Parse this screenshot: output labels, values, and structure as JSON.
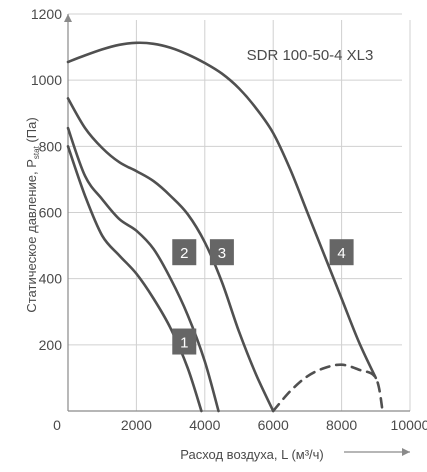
{
  "chart_data": {
    "type": "line",
    "title": "SDR 100-50-4 XL3",
    "xlabel": "Расход воздуха, L (м³/ч)",
    "ylabel": "Статическое давление, P",
    "ylabel_sub": "stat",
    "ylabel_unit": " (Па)",
    "xlim": [
      0,
      10000
    ],
    "ylim": [
      0,
      1200
    ],
    "x_ticks": [
      0,
      2000,
      4000,
      6000,
      8000,
      10000
    ],
    "y_ticks": [
      200,
      400,
      600,
      800,
      1000,
      1200
    ],
    "grid": true,
    "series": [
      {
        "name": "1",
        "values": [
          [
            0,
            800
          ],
          [
            500,
            650
          ],
          [
            1000,
            530
          ],
          [
            1500,
            470
          ],
          [
            2000,
            415
          ],
          [
            2500,
            340
          ],
          [
            3000,
            250
          ],
          [
            3500,
            130
          ],
          [
            3900,
            0
          ]
        ]
      },
      {
        "name": "2",
        "values": [
          [
            0,
            855
          ],
          [
            500,
            710
          ],
          [
            1000,
            640
          ],
          [
            1500,
            580
          ],
          [
            2000,
            545
          ],
          [
            2500,
            490
          ],
          [
            3000,
            400
          ],
          [
            3500,
            290
          ],
          [
            4000,
            150
          ],
          [
            4400,
            0
          ]
        ]
      },
      {
        "name": "3",
        "values": [
          [
            0,
            945
          ],
          [
            500,
            855
          ],
          [
            1000,
            795
          ],
          [
            1500,
            752
          ],
          [
            2000,
            725
          ],
          [
            2500,
            695
          ],
          [
            3000,
            650
          ],
          [
            3500,
            595
          ],
          [
            4000,
            510
          ],
          [
            4500,
            390
          ],
          [
            5000,
            240
          ],
          [
            5500,
            110
          ],
          [
            6000,
            0
          ]
        ]
      },
      {
        "name": "4",
        "values": [
          [
            0,
            1055
          ],
          [
            500,
            1075
          ],
          [
            1000,
            1093
          ],
          [
            1500,
            1107
          ],
          [
            2000,
            1113
          ],
          [
            2500,
            1110
          ],
          [
            3000,
            1098
          ],
          [
            3500,
            1078
          ],
          [
            4000,
            1052
          ],
          [
            4500,
            1020
          ],
          [
            5000,
            975
          ],
          [
            5500,
            915
          ],
          [
            6000,
            840
          ],
          [
            6500,
            730
          ],
          [
            7000,
            600
          ],
          [
            7500,
            470
          ],
          [
            8000,
            340
          ],
          [
            8500,
            210
          ],
          [
            9000,
            100
          ]
        ]
      },
      {
        "name": "4",
        "style": "dashed",
        "values": [
          [
            6000,
            0
          ],
          [
            6500,
            60
          ],
          [
            7000,
            105
          ],
          [
            7500,
            130
          ],
          [
            8000,
            140
          ],
          [
            8500,
            125
          ],
          [
            9000,
            100
          ],
          [
            9200,
            0
          ]
        ]
      }
    ],
    "markers": [
      {
        "label": "1",
        "x": 3400,
        "y": 210
      },
      {
        "label": "2",
        "x": 3400,
        "y": 480
      },
      {
        "label": "3",
        "x": 4500,
        "y": 480
      },
      {
        "label": "4",
        "x": 8000,
        "y": 480
      }
    ]
  }
}
